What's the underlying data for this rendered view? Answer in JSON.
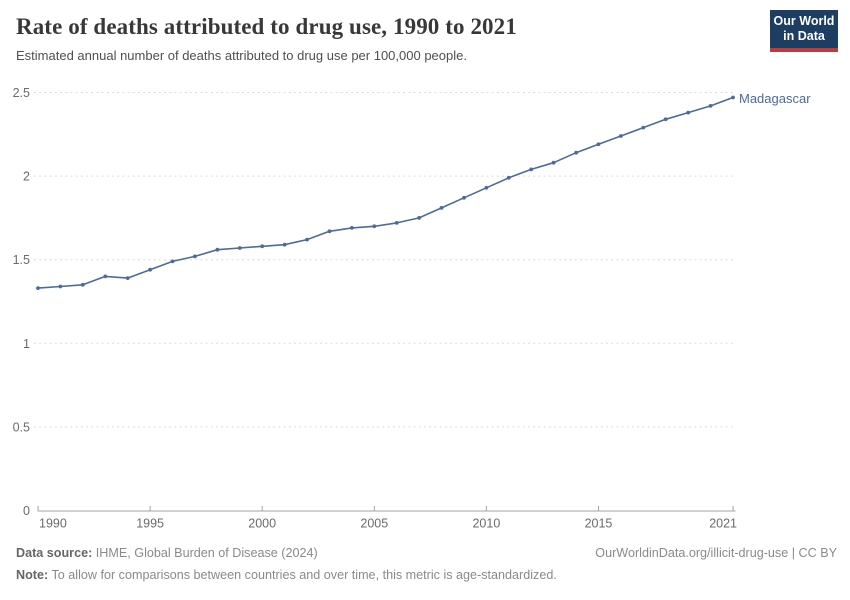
{
  "header": {
    "title": "Rate of deaths attributed to drug use, 1990 to 2021",
    "subtitle": "Estimated annual number of deaths attributed to drug use per 100,000 people."
  },
  "logo": {
    "line1": "Our World",
    "line2": "in Data",
    "bg_color": "#1d3d63",
    "accent_color": "#c0393b"
  },
  "chart_data": {
    "type": "line",
    "title": "Rate of deaths attributed to drug use, 1990 to 2021",
    "xlabel": "",
    "ylabel": "",
    "x": [
      1990,
      1991,
      1992,
      1993,
      1994,
      1995,
      1996,
      1997,
      1998,
      1999,
      2000,
      2001,
      2002,
      2003,
      2004,
      2005,
      2006,
      2007,
      2008,
      2009,
      2010,
      2011,
      2012,
      2013,
      2014,
      2015,
      2016,
      2017,
      2018,
      2019,
      2020,
      2021
    ],
    "series": [
      {
        "name": "Madagascar",
        "color": "#4C6A9F",
        "values": [
          1.33,
          1.34,
          1.35,
          1.4,
          1.39,
          1.44,
          1.49,
          1.52,
          1.56,
          1.57,
          1.58,
          1.59,
          1.62,
          1.67,
          1.69,
          1.7,
          1.72,
          1.75,
          1.81,
          1.87,
          1.93,
          1.99,
          2.04,
          2.08,
          2.14,
          2.19,
          2.24,
          2.29,
          2.34,
          2.38,
          2.42,
          2.47
        ]
      }
    ],
    "ylim": [
      0,
      2.5
    ],
    "yticks": [
      0,
      0.5,
      1,
      1.5,
      2,
      2.5
    ],
    "xticks": [
      1990,
      1995,
      2000,
      2005,
      2010,
      2015,
      2021
    ],
    "grid": "horizontal-dashed",
    "legend_position": "end-of-line-label",
    "marker": "point"
  },
  "footer": {
    "datasource_label": "Data source:",
    "datasource_text": "IHME, Global Burden of Disease (2024)",
    "link_text": "OurWorldinData.org/illicit-drug-use | CC BY",
    "note_label": "Note:",
    "note_text": "To allow for comparisons between countries and over time, this metric is age-standardized."
  }
}
